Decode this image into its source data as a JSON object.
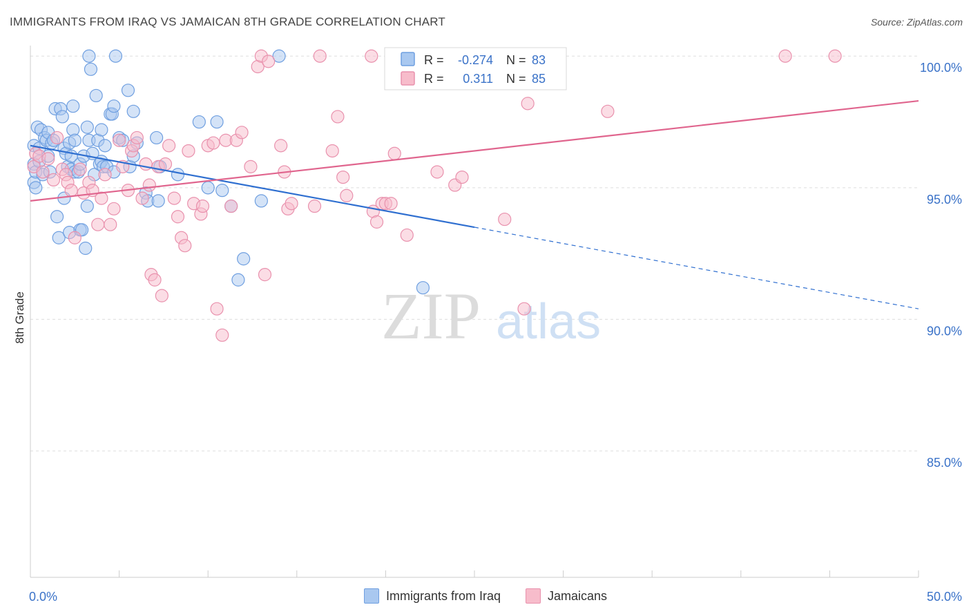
{
  "header": {
    "title": "IMMIGRANTS FROM IRAQ VS JAMAICAN 8TH GRADE CORRELATION CHART",
    "source": "Source: ZipAtlas.com"
  },
  "watermark": {
    "zip": "ZIP",
    "atlas": "atlas"
  },
  "legend": {
    "r_label": "R =",
    "n_label": "N =",
    "rows": [
      {
        "r": "-0.274",
        "n": "83"
      },
      {
        "r": "0.311",
        "n": "85"
      }
    ]
  },
  "colors": {
    "iraq_fill": "#a9c8f0",
    "iraq_stroke": "#6f9fe0",
    "iraq_line": "#2f6fd0",
    "jamaican_fill": "#f7bccb",
    "jamaican_stroke": "#e991ad",
    "jamaican_line": "#e0658e",
    "value_text": "#3a72c8",
    "grid": "#dddddd"
  },
  "chart_data": {
    "type": "scatter",
    "ylabel": "8th Grade",
    "xlim": [
      0,
      50
    ],
    "ylim": [
      80.2,
      100.4
    ],
    "x_tick_labels": [
      {
        "value": 0,
        "label": "0.0%"
      },
      {
        "value": 50,
        "label": "50.0%"
      }
    ],
    "y_tick_labels": [
      {
        "value": 85,
        "label": "85.0%"
      },
      {
        "value": 90,
        "label": "90.0%"
      },
      {
        "value": 95,
        "label": "95.0%"
      },
      {
        "value": 100,
        "label": "100.0%"
      }
    ],
    "x_minor_ticks": [
      0,
      5,
      10,
      15,
      20,
      25,
      30,
      35,
      40,
      45,
      50
    ],
    "grid": true,
    "series": [
      {
        "name": "Immigrants from Iraq",
        "trend": {
          "x1": 0,
          "y1": 96.6,
          "x2": 25,
          "y2": 93.5,
          "dash_x2": 50,
          "dash_y2": 90.4
        },
        "points": [
          [
            0.2,
            96.6
          ],
          [
            0.2,
            95.9
          ],
          [
            0.2,
            95.2
          ],
          [
            0.3,
            95.0
          ],
          [
            0.3,
            95.6
          ],
          [
            0.4,
            97.3
          ],
          [
            0.5,
            96.5
          ],
          [
            0.5,
            96.0
          ],
          [
            0.6,
            97.2
          ],
          [
            0.7,
            95.5
          ],
          [
            0.8,
            96.9
          ],
          [
            0.9,
            96.8
          ],
          [
            1.0,
            97.1
          ],
          [
            1.0,
            96.2
          ],
          [
            1.1,
            95.6
          ],
          [
            1.2,
            96.7
          ],
          [
            1.3,
            96.8
          ],
          [
            1.4,
            98.0
          ],
          [
            1.5,
            93.9
          ],
          [
            1.6,
            93.1
          ],
          [
            1.7,
            98.0
          ],
          [
            1.8,
            97.7
          ],
          [
            1.9,
            96.5
          ],
          [
            2.0,
            96.3
          ],
          [
            2.1,
            95.8
          ],
          [
            2.2,
            96.7
          ],
          [
            2.2,
            93.3
          ],
          [
            2.3,
            95.7
          ],
          [
            2.4,
            98.1
          ],
          [
            2.5,
            95.6
          ],
          [
            2.3,
            96.2
          ],
          [
            2.4,
            97.2
          ],
          [
            2.5,
            96.8
          ],
          [
            2.7,
            95.6
          ],
          [
            2.8,
            95.9
          ],
          [
            2.8,
            93.4
          ],
          [
            2.9,
            93.4
          ],
          [
            3.0,
            96.2
          ],
          [
            3.1,
            92.7
          ],
          [
            3.2,
            97.3
          ],
          [
            3.3,
            96.8
          ],
          [
            3.2,
            94.3
          ],
          [
            3.4,
            99.5
          ],
          [
            3.3,
            100.0
          ],
          [
            3.5,
            96.3
          ],
          [
            3.6,
            95.5
          ],
          [
            3.7,
            98.5
          ],
          [
            3.8,
            96.8
          ],
          [
            3.9,
            95.9
          ],
          [
            4.0,
            97.2
          ],
          [
            4.0,
            96.0
          ],
          [
            4.1,
            95.8
          ],
          [
            4.2,
            96.6
          ],
          [
            4.3,
            95.8
          ],
          [
            4.5,
            97.8
          ],
          [
            4.6,
            97.8
          ],
          [
            4.7,
            98.1
          ],
          [
            4.7,
            95.6
          ],
          [
            4.8,
            100.0
          ],
          [
            5.0,
            96.9
          ],
          [
            5.2,
            96.8
          ],
          [
            5.5,
            98.7
          ],
          [
            5.6,
            95.8
          ],
          [
            5.8,
            96.2
          ],
          [
            6.0,
            96.7
          ],
          [
            6.5,
            94.8
          ],
          [
            6.6,
            94.5
          ],
          [
            7.1,
            96.9
          ],
          [
            7.2,
            94.5
          ],
          [
            7.3,
            95.8
          ],
          [
            8.3,
            95.5
          ],
          [
            9.5,
            97.5
          ],
          [
            10.0,
            95.0
          ],
          [
            10.5,
            97.5
          ],
          [
            10.8,
            94.9
          ],
          [
            11.3,
            94.3
          ],
          [
            11.7,
            91.5
          ],
          [
            12.0,
            92.3
          ],
          [
            13.0,
            94.5
          ],
          [
            14.0,
            100.0
          ],
          [
            22.1,
            91.2
          ],
          [
            5.8,
            97.9
          ],
          [
            1.9,
            94.6
          ]
        ]
      },
      {
        "name": "Jamaicans",
        "trend": {
          "x1": 0,
          "y1": 94.5,
          "x2": 50,
          "y2": 98.3
        },
        "points": [
          [
            0.2,
            95.8
          ],
          [
            0.3,
            96.3
          ],
          [
            0.5,
            96.2
          ],
          [
            0.7,
            95.6
          ],
          [
            1.0,
            96.1
          ],
          [
            1.3,
            95.3
          ],
          [
            1.5,
            96.9
          ],
          [
            1.8,
            95.7
          ],
          [
            2.0,
            95.5
          ],
          [
            2.1,
            95.2
          ],
          [
            2.3,
            94.9
          ],
          [
            2.5,
            93.1
          ],
          [
            2.8,
            95.7
          ],
          [
            3.0,
            94.8
          ],
          [
            3.3,
            95.2
          ],
          [
            3.5,
            94.9
          ],
          [
            3.8,
            93.6
          ],
          [
            4.0,
            94.6
          ],
          [
            4.2,
            95.5
          ],
          [
            4.5,
            93.6
          ],
          [
            4.7,
            94.2
          ],
          [
            5.0,
            96.8
          ],
          [
            5.2,
            95.8
          ],
          [
            5.5,
            94.9
          ],
          [
            5.7,
            96.4
          ],
          [
            5.8,
            96.6
          ],
          [
            6.0,
            96.9
          ],
          [
            6.3,
            94.6
          ],
          [
            6.5,
            95.9
          ],
          [
            6.7,
            95.1
          ],
          [
            6.8,
            91.7
          ],
          [
            7.0,
            91.5
          ],
          [
            7.2,
            95.8
          ],
          [
            7.4,
            90.9
          ],
          [
            7.6,
            95.9
          ],
          [
            7.8,
            96.6
          ],
          [
            8.1,
            94.6
          ],
          [
            8.3,
            93.9
          ],
          [
            8.5,
            93.1
          ],
          [
            8.7,
            92.8
          ],
          [
            8.9,
            96.4
          ],
          [
            9.2,
            94.4
          ],
          [
            9.6,
            94.0
          ],
          [
            9.7,
            94.3
          ],
          [
            10.0,
            96.6
          ],
          [
            10.3,
            96.7
          ],
          [
            10.5,
            90.4
          ],
          [
            10.8,
            89.4
          ],
          [
            11.0,
            96.8
          ],
          [
            11.3,
            94.3
          ],
          [
            11.6,
            96.8
          ],
          [
            11.9,
            97.1
          ],
          [
            12.4,
            95.8
          ],
          [
            12.8,
            99.6
          ],
          [
            13.0,
            100.0
          ],
          [
            13.2,
            91.7
          ],
          [
            13.4,
            99.8
          ],
          [
            14.1,
            96.6
          ],
          [
            14.3,
            95.6
          ],
          [
            14.5,
            94.2
          ],
          [
            14.7,
            94.4
          ],
          [
            16.0,
            94.3
          ],
          [
            16.3,
            100.0
          ],
          [
            17.0,
            96.4
          ],
          [
            17.3,
            97.7
          ],
          [
            17.6,
            95.4
          ],
          [
            17.8,
            94.7
          ],
          [
            19.2,
            100.0
          ],
          [
            19.3,
            94.1
          ],
          [
            19.5,
            93.7
          ],
          [
            19.8,
            94.4
          ],
          [
            20.0,
            94.4
          ],
          [
            20.3,
            94.4
          ],
          [
            20.5,
            96.3
          ],
          [
            21.2,
            93.2
          ],
          [
            22.9,
            95.6
          ],
          [
            23.9,
            95.1
          ],
          [
            24.3,
            95.4
          ],
          [
            26.7,
            93.8
          ],
          [
            27.3,
            100.0
          ],
          [
            27.8,
            90.4
          ],
          [
            28.0,
            98.2
          ],
          [
            32.5,
            97.9
          ],
          [
            42.5,
            100.0
          ],
          [
            45.3,
            100.0
          ]
        ]
      }
    ]
  }
}
